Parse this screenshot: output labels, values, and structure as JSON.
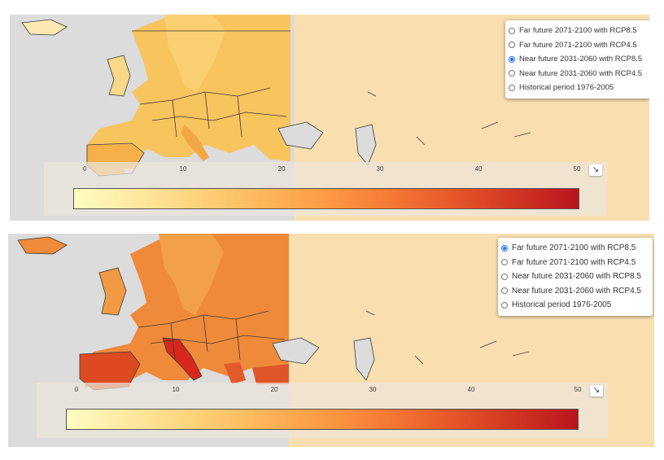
{
  "legend": {
    "ticks": [
      "0",
      "10",
      "20",
      "30",
      "40",
      "50"
    ],
    "collapse_icon": "↘",
    "gradient_colors": [
      "#fffcc4",
      "#fdd27a",
      "#fc9b45",
      "#e85a2a",
      "#b8141e"
    ]
  },
  "panels": [
    {
      "layers": [
        {
          "label": "Far future 2071-2100 with RCP8.5",
          "checked": false
        },
        {
          "label": "Far future 2071-2100 with RCP4.5",
          "checked": false
        },
        {
          "label": "Near future 2031-2060 with RCP8.5",
          "checked": true
        },
        {
          "label": "Near future 2031-2060 with RCP4.5",
          "checked": false
        },
        {
          "label": "Historical period 1976-2005",
          "checked": false
        }
      ]
    },
    {
      "layers": [
        {
          "label": "Far future 2071-2100 with RCP8.5",
          "checked": true
        },
        {
          "label": "Far future 2071-2100 with RCP4.5",
          "checked": false
        },
        {
          "label": "Near future 2031-2060 with RCP8.5",
          "checked": false
        },
        {
          "label": "Near future 2031-2060 with RCP4.5",
          "checked": false
        },
        {
          "label": "Historical period 1976-2005",
          "checked": false
        }
      ]
    }
  ],
  "colors": {
    "sea": "#dcdcdc",
    "land_outside": "#f9dfb0",
    "top_europe": "#f8c45e",
    "bottom_europe": "#ef8a3a",
    "hot_spot": "#d8281c",
    "border": "#3a3a3a",
    "radio_selected": "#1a73e8"
  }
}
